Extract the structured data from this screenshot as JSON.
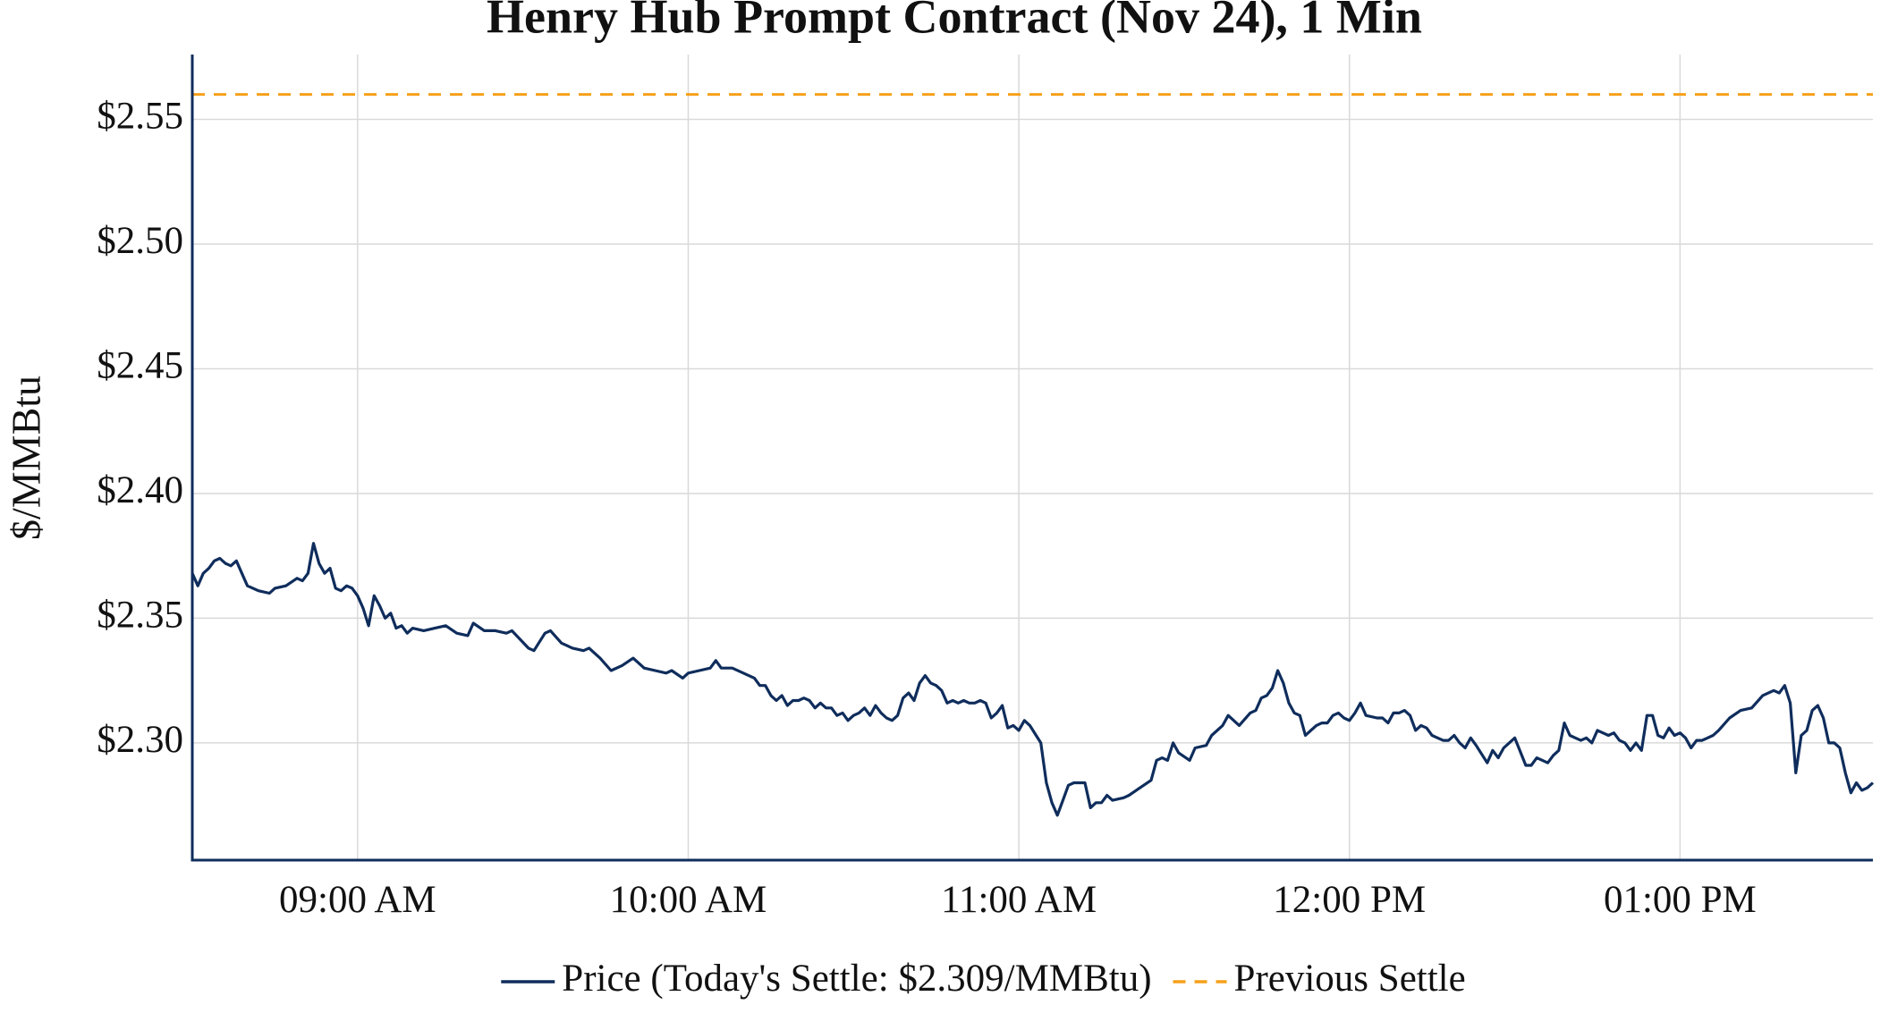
{
  "chart_data": {
    "type": "line",
    "title": "Henry Hub Prompt Contract (Nov 24), 1 Min",
    "y_label": "$/MMBtu",
    "x": [
      "08:30 AM",
      "08:31 AM",
      "08:32 AM",
      "08:33 AM",
      "08:34 AM",
      "08:35 AM",
      "08:36 AM",
      "08:37 AM",
      "08:38 AM",
      "08:39 AM",
      "08:40 AM",
      "08:42 AM",
      "08:44 AM",
      "08:45 AM",
      "08:47 AM",
      "08:49 AM",
      "08:50 AM",
      "08:51 AM",
      "08:52 AM",
      "08:53 AM",
      "08:54 AM",
      "08:55 AM",
      "08:56 AM",
      "08:57 AM",
      "08:58 AM",
      "08:59 AM",
      "09:00 AM",
      "09:01 AM",
      "09:02 AM",
      "09:03 AM",
      "09:04 AM",
      "09:05 AM",
      "09:06 AM",
      "09:07 AM",
      "09:08 AM",
      "09:09 AM",
      "09:10 AM",
      "09:12 AM",
      "09:14 AM",
      "09:16 AM",
      "09:18 AM",
      "09:20 AM",
      "09:21 AM",
      "09:23 AM",
      "09:25 AM",
      "09:27 AM",
      "09:28 AM",
      "09:31 AM",
      "09:32 AM",
      "09:34 AM",
      "09:35 AM",
      "09:37 AM",
      "09:39 AM",
      "09:41 AM",
      "09:42 AM",
      "09:44 AM",
      "09:46 AM",
      "09:48 AM",
      "09:50 AM",
      "09:52 AM",
      "09:54 AM",
      "09:56 AM",
      "09:57 AM",
      "09:59 AM",
      "10:00 AM",
      "10:02 AM",
      "10:04 AM",
      "10:05 AM",
      "10:06 AM",
      "10:08 AM",
      "10:10 AM",
      "10:12 AM",
      "10:13 AM",
      "10:14 AM",
      "10:15 AM",
      "10:16 AM",
      "10:17 AM",
      "10:18 AM",
      "10:19 AM",
      "10:20 AM",
      "10:21 AM",
      "10:22 AM",
      "10:23 AM",
      "10:24 AM",
      "10:25 AM",
      "10:26 AM",
      "10:27 AM",
      "10:28 AM",
      "10:29 AM",
      "10:30 AM",
      "10:31 AM",
      "10:32 AM",
      "10:33 AM",
      "10:34 AM",
      "10:35 AM",
      "10:36 AM",
      "10:37 AM",
      "10:38 AM",
      "10:39 AM",
      "10:40 AM",
      "10:41 AM",
      "10:42 AM",
      "10:43 AM",
      "10:44 AM",
      "10:45 AM",
      "10:46 AM",
      "10:47 AM",
      "10:48 AM",
      "10:49 AM",
      "10:50 AM",
      "10:51 AM",
      "10:52 AM",
      "10:53 AM",
      "10:54 AM",
      "10:55 AM",
      "10:56 AM",
      "10:57 AM",
      "10:58 AM",
      "10:59 AM",
      "11:00 AM",
      "11:01 AM",
      "11:02 AM",
      "11:04 AM",
      "11:05 AM",
      "11:06 AM",
      "11:07 AM",
      "11:08 AM",
      "11:09 AM",
      "11:10 AM",
      "11:12 AM",
      "11:13 AM",
      "11:14 AM",
      "11:15 AM",
      "11:16 AM",
      "11:17 AM",
      "11:19 AM",
      "11:20 AM",
      "11:22 AM",
      "11:24 AM",
      "11:25 AM",
      "11:26 AM",
      "11:27 AM",
      "11:28 AM",
      "11:29 AM",
      "11:31 AM",
      "11:32 AM",
      "11:34 AM",
      "11:35 AM",
      "11:37 AM",
      "11:38 AM",
      "11:40 AM",
      "11:42 AM",
      "11:43 AM",
      "11:44 AM",
      "11:45 AM",
      "11:46 AM",
      "11:47 AM",
      "11:48 AM",
      "11:49 AM",
      "11:50 AM",
      "11:51 AM",
      "11:52 AM",
      "11:53 AM",
      "11:54 AM",
      "11:55 AM",
      "11:56 AM",
      "11:57 AM",
      "11:58 AM",
      "11:59 AM",
      "12:00 PM",
      "12:01 PM",
      "12:02 PM",
      "12:03 PM",
      "12:05 PM",
      "12:06 PM",
      "12:07 PM",
      "12:08 PM",
      "12:09 PM",
      "12:10 PM",
      "12:11 PM",
      "12:12 PM",
      "12:13 PM",
      "12:14 PM",
      "12:15 PM",
      "12:16 PM",
      "12:17 PM",
      "12:18 PM",
      "12:19 PM",
      "12:20 PM",
      "12:21 PM",
      "12:22 PM",
      "12:23 PM",
      "12:25 PM",
      "12:26 PM",
      "12:27 PM",
      "12:28 PM",
      "12:29 PM",
      "12:30 PM",
      "12:32 PM",
      "12:33 PM",
      "12:34 PM",
      "12:36 PM",
      "12:37 PM",
      "12:38 PM",
      "12:39 PM",
      "12:40 PM",
      "12:41 PM",
      "12:42 PM",
      "12:43 PM",
      "12:44 PM",
      "12:45 PM",
      "12:46 PM",
      "12:47 PM",
      "12:48 PM",
      "12:49 PM",
      "12:50 PM",
      "12:51 PM",
      "12:52 PM",
      "12:53 PM",
      "12:54 PM",
      "12:55 PM",
      "12:56 PM",
      "12:57 PM",
      "12:58 PM",
      "12:59 PM",
      "01:00 PM",
      "01:01 PM",
      "01:02 PM",
      "01:03 PM",
      "01:04 PM",
      "01:05 PM",
      "01:06 PM",
      "01:07 PM",
      "01:09 PM",
      "01:11 PM",
      "01:13 PM",
      "01:15 PM",
      "01:17 PM",
      "01:18 PM",
      "01:19 PM",
      "01:20 PM",
      "01:21 PM",
      "01:22 PM",
      "01:23 PM",
      "01:24 PM",
      "01:25 PM",
      "01:26 PM",
      "01:27 PM",
      "01:28 PM",
      "01:29 PM",
      "01:30 PM",
      "01:31 PM",
      "01:32 PM",
      "01:33 PM",
      "01:34 PM",
      "01:35 PM"
    ],
    "series": [
      {
        "name": "Price (Today's Settle: $2.309/MMBtu)",
        "color": "#0f2d5c",
        "values": [
          2.368,
          2.363,
          2.368,
          2.37,
          2.373,
          2.374,
          2.372,
          2.371,
          2.373,
          2.368,
          2.363,
          2.361,
          2.36,
          2.362,
          2.363,
          2.366,
          2.365,
          2.368,
          2.38,
          2.372,
          2.368,
          2.37,
          2.362,
          2.361,
          2.363,
          2.362,
          2.359,
          2.354,
          2.347,
          2.359,
          2.355,
          2.35,
          2.352,
          2.346,
          2.347,
          2.344,
          2.346,
          2.345,
          2.346,
          2.347,
          2.344,
          2.343,
          2.348,
          2.345,
          2.345,
          2.344,
          2.345,
          2.338,
          2.337,
          2.344,
          2.345,
          2.34,
          2.338,
          2.337,
          2.338,
          2.334,
          2.329,
          2.331,
          2.334,
          2.33,
          2.329,
          2.328,
          2.329,
          2.326,
          2.328,
          2.329,
          2.33,
          2.333,
          2.33,
          2.33,
          2.328,
          2.326,
          2.323,
          2.323,
          2.319,
          2.317,
          2.319,
          2.315,
          2.317,
          2.317,
          2.318,
          2.317,
          2.314,
          2.316,
          2.314,
          2.314,
          2.311,
          2.312,
          2.309,
          2.311,
          2.312,
          2.314,
          2.311,
          2.315,
          2.312,
          2.31,
          2.309,
          2.311,
          2.318,
          2.32,
          2.317,
          2.324,
          2.327,
          2.324,
          2.323,
          2.321,
          2.316,
          2.317,
          2.316,
          2.317,
          2.316,
          2.316,
          2.317,
          2.316,
          2.31,
          2.312,
          2.315,
          2.306,
          2.307,
          2.305,
          2.309,
          2.307,
          2.3,
          2.284,
          2.276,
          2.271,
          2.277,
          2.283,
          2.284,
          2.284,
          2.274,
          2.276,
          2.276,
          2.279,
          2.277,
          2.278,
          2.279,
          2.282,
          2.285,
          2.293,
          2.294,
          2.293,
          2.3,
          2.296,
          2.293,
          2.298,
          2.299,
          2.303,
          2.307,
          2.311,
          2.307,
          2.312,
          2.313,
          2.318,
          2.319,
          2.322,
          2.329,
          2.324,
          2.316,
          2.312,
          2.311,
          2.303,
          2.305,
          2.307,
          2.308,
          2.308,
          2.311,
          2.312,
          2.31,
          2.309,
          2.312,
          2.316,
          2.311,
          2.31,
          2.31,
          2.308,
          2.312,
          2.312,
          2.313,
          2.311,
          2.305,
          2.307,
          2.306,
          2.303,
          2.302,
          2.301,
          2.301,
          2.303,
          2.3,
          2.298,
          2.302,
          2.299,
          2.292,
          2.297,
          2.294,
          2.298,
          2.3,
          2.302,
          2.291,
          2.291,
          2.294,
          2.292,
          2.295,
          2.297,
          2.308,
          2.303,
          2.302,
          2.301,
          2.302,
          2.3,
          2.305,
          2.304,
          2.303,
          2.304,
          2.301,
          2.3,
          2.297,
          2.3,
          2.297,
          2.311,
          2.311,
          2.303,
          2.302,
          2.306,
          2.303,
          2.304,
          2.302,
          2.298,
          2.301,
          2.301,
          2.302,
          2.303,
          2.305,
          2.31,
          2.313,
          2.314,
          2.319,
          2.321,
          2.32,
          2.323,
          2.316,
          2.288,
          2.303,
          2.305,
          2.313,
          2.315,
          2.31,
          2.3,
          2.3,
          2.298,
          2.288,
          2.28,
          2.284,
          2.281,
          2.282,
          2.284
        ]
      }
    ],
    "reference_lines": [
      {
        "name": "Previous Settle",
        "value": 2.56,
        "color": "#f5a01a",
        "dashed": true
      }
    ],
    "xlim": [
      "08:30 AM",
      "01:35 PM"
    ],
    "xticks": [
      "09:00 AM",
      "10:00 AM",
      "11:00 AM",
      "12:00 PM",
      "01:00 PM"
    ],
    "ylim": [
      2.253,
      2.576
    ],
    "yticks": [
      {
        "value": 2.3,
        "label": "$2.30"
      },
      {
        "value": 2.35,
        "label": "$2.35"
      },
      {
        "value": 2.4,
        "label": "$2.40"
      },
      {
        "value": 2.45,
        "label": "$2.45"
      },
      {
        "value": 2.5,
        "label": "$2.50"
      },
      {
        "value": 2.55,
        "label": "$2.55"
      }
    ],
    "grid": true,
    "legend": "bottom"
  }
}
